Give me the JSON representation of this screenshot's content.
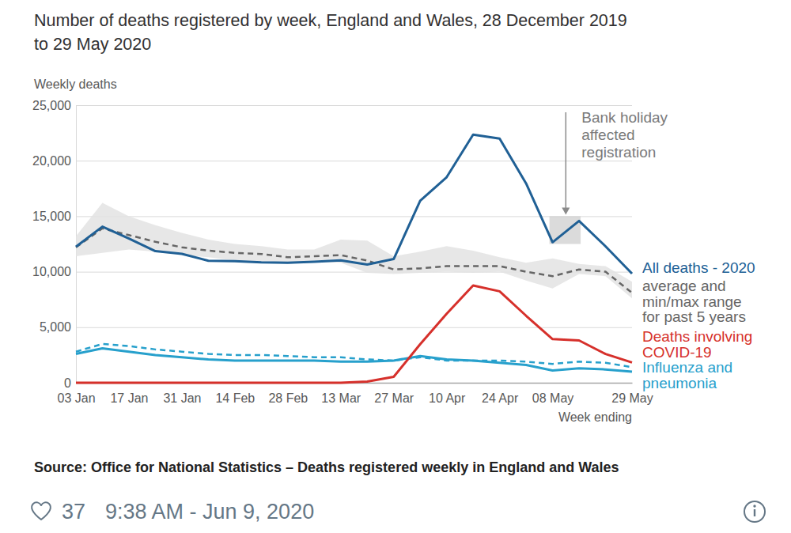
{
  "chart_data": {
    "type": "line",
    "title": "Number of deaths registered by week, England and Wales, 28 December 2019 to 29 May 2020",
    "y_label": "Weekly deaths",
    "x_label": "Week ending",
    "categories": [
      "03 Jan",
      null,
      "17 Jan",
      null,
      "31 Jan",
      null,
      "14 Feb",
      null,
      "28 Feb",
      null,
      "13 Mar",
      null,
      "27 Mar",
      null,
      "10 Apr",
      null,
      "24 Apr",
      null,
      "08 May",
      null,
      null,
      "29 May"
    ],
    "series": [
      {
        "name": "All deaths - 2020",
        "color": "#206095",
        "line_style": "solid",
        "values": [
          12254,
          14058,
          12990,
          11856,
          11612,
          10986,
          10944,
          10841,
          10816,
          10895,
          11019,
          10645,
          11141,
          16387,
          18516,
          22351,
          21997,
          17953,
          12657,
          14573,
          12288,
          9824
        ]
      },
      {
        "name": "average and min/max range for past 5 years",
        "color": "#666666",
        "line_style": "dashed",
        "values": [
          12200,
          13900,
          13300,
          12700,
          12200,
          11900,
          11700,
          11600,
          11300,
          11400,
          11500,
          11000,
          10200,
          10300,
          10500,
          10500,
          10500,
          10000,
          9600,
          10200,
          10000,
          8100
        ],
        "min": [
          11400,
          11700,
          12000,
          11800,
          11500,
          11300,
          11000,
          10900,
          10700,
          10900,
          10800,
          9900,
          9800,
          9900,
          10000,
          9900,
          10000,
          9200,
          8500,
          9800,
          9600,
          7600
        ],
        "max": [
          13200,
          16200,
          15000,
          14200,
          13500,
          12900,
          12500,
          12300,
          12000,
          12000,
          12900,
          12800,
          11400,
          11800,
          12300,
          11900,
          11300,
          10800,
          11200,
          10700,
          10500,
          9100
        ]
      },
      {
        "name": "Deaths involving COVID-19",
        "color": "#d6302b",
        "line_style": "solid",
        "values": [
          0,
          0,
          0,
          0,
          0,
          0,
          0,
          0,
          0,
          0,
          5,
          103,
          539,
          3475,
          6213,
          8758,
          8237,
          6035,
          3930,
          3810,
          2589,
          1822
        ]
      },
      {
        "name": "Influenza and pneumonia",
        "color": "#27a0cc",
        "line_style": "solid",
        "values": [
          2600,
          3100,
          2800,
          2500,
          2300,
          2100,
          2000,
          2000,
          2000,
          2000,
          1900,
          1900,
          2000,
          2400,
          2100,
          2000,
          1800,
          1600,
          1100,
          1300,
          1200,
          1000
        ]
      },
      {
        "color": "#27a0cc",
        "line_style": "dashed",
        "values": [
          2800,
          3500,
          3300,
          3000,
          2800,
          2600,
          2500,
          2500,
          2400,
          2300,
          2300,
          2100,
          2000,
          2300,
          2000,
          2000,
          2000,
          1900,
          1700,
          1900,
          1800,
          1400
        ]
      }
    ],
    "ylim": [
      0,
      25000
    ],
    "yticks": [
      0,
      {
        "value": 5000,
        "label": "5,000"
      },
      {
        "value": 10000,
        "label": "10,000"
      },
      {
        "value": 15000,
        "label": "15,000"
      },
      {
        "value": 20000,
        "label": "20,000"
      },
      {
        "value": 25000,
        "label": "25,000"
      }
    ],
    "grid": true,
    "annotation": {
      "text": "Bank holiday affected registration",
      "y_range": [
        12500,
        15000
      ]
    },
    "source": "Source: Office for National Statistics – Deaths registered weekly in England and Wales"
  },
  "tweet": {
    "likes": 37,
    "timestamp": "9:38 AM - Jun 9, 2020"
  }
}
